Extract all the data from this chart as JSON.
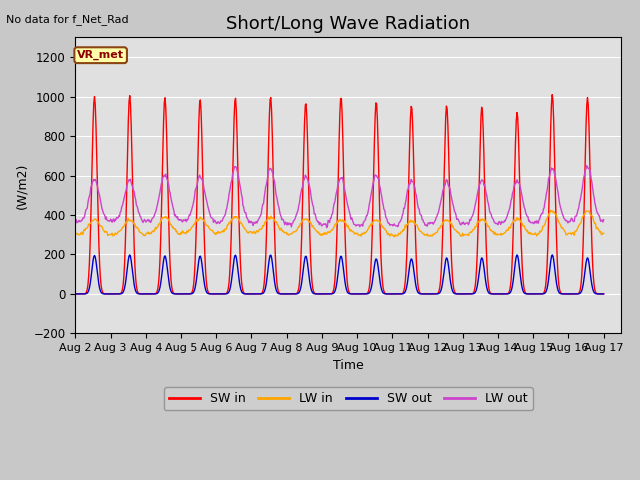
{
  "title": "Short/Long Wave Radiation",
  "ylabel": "(W/m2)",
  "xlabel": "Time",
  "annotation_text": "No data for f_Net_Rad",
  "legend_labels": [
    "SW in",
    "LW in",
    "SW out",
    "LW out"
  ],
  "legend_colors": [
    "#ff0000",
    "#ffa500",
    "#0000cc",
    "#cc44cc"
  ],
  "ylim": [
    -200,
    1300
  ],
  "yticks": [
    -200,
    0,
    200,
    400,
    600,
    800,
    1000,
    1200
  ],
  "plot_bg_color": "#e0e0e0",
  "fig_bg_color": "#c8c8c8",
  "num_days": 15,
  "vr_met_label": "VR_met",
  "sw_in_peaks": [
    1000,
    1005,
    995,
    985,
    995,
    1000,
    970,
    1000,
    975,
    955,
    955,
    948,
    920,
    1010,
    995
  ],
  "lw_in_base": [
    300,
    300,
    305,
    310,
    310,
    310,
    305,
    305,
    300,
    295,
    295,
    300,
    300,
    305,
    305
  ],
  "lw_in_day_peak": [
    380,
    375,
    390,
    385,
    390,
    390,
    380,
    375,
    375,
    370,
    375,
    375,
    380,
    420,
    420
  ],
  "lw_out_night": [
    365,
    370,
    370,
    370,
    365,
    360,
    355,
    350,
    350,
    350,
    355,
    358,
    360,
    365,
    370
  ],
  "lw_out_peaks": [
    580,
    575,
    605,
    595,
    645,
    635,
    595,
    590,
    600,
    575,
    570,
    575,
    575,
    640,
    648
  ],
  "sw_out_peaks": [
    195,
    198,
    193,
    192,
    197,
    198,
    192,
    192,
    178,
    178,
    183,
    183,
    198,
    198,
    183
  ],
  "title_fontsize": 13,
  "label_fontsize": 9,
  "tick_fontsize": 8.5
}
